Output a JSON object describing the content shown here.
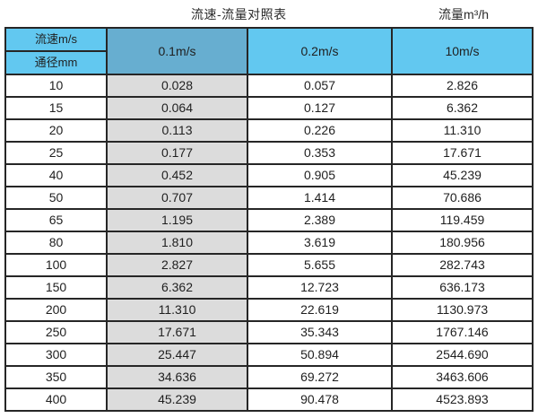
{
  "header": {
    "title": "流速-流量对照表",
    "unit_label": "流量m³/h"
  },
  "table": {
    "corner_top": "流速m/s",
    "corner_bottom": "通径mm",
    "velocity_columns": [
      "0.1m/s",
      "0.2m/s",
      "10m/s"
    ],
    "rows": [
      {
        "dn": "10",
        "values": [
          "0.028",
          "0.057",
          "2.826"
        ]
      },
      {
        "dn": "15",
        "values": [
          "0.064",
          "0.127",
          "6.362"
        ]
      },
      {
        "dn": "20",
        "values": [
          "0.113",
          "0.226",
          "11.310"
        ]
      },
      {
        "dn": "25",
        "values": [
          "0.177",
          "0.353",
          "17.671"
        ]
      },
      {
        "dn": "40",
        "values": [
          "0.452",
          "0.905",
          "45.239"
        ]
      },
      {
        "dn": "50",
        "values": [
          "0.707",
          "1.414",
          "70.686"
        ]
      },
      {
        "dn": "65",
        "values": [
          "1.195",
          "2.389",
          "119.459"
        ]
      },
      {
        "dn": "80",
        "values": [
          "1.810",
          "3.619",
          "180.956"
        ]
      },
      {
        "dn": "100",
        "values": [
          "2.827",
          "5.655",
          "282.743"
        ]
      },
      {
        "dn": "150",
        "values": [
          "6.362",
          "12.723",
          "636.173"
        ]
      },
      {
        "dn": "200",
        "values": [
          "11.310",
          "22.619",
          "1130.973"
        ]
      },
      {
        "dn": "250",
        "values": [
          "17.671",
          "35.343",
          "1767.146"
        ]
      },
      {
        "dn": "300",
        "values": [
          "25.447",
          "50.894",
          "2544.690"
        ]
      },
      {
        "dn": "350",
        "values": [
          "34.636",
          "69.272",
          "3463.606"
        ]
      },
      {
        "dn": "400",
        "values": [
          "45.239",
          "90.478",
          "4523.893"
        ]
      }
    ]
  },
  "colors": {
    "header_light_blue": "#62c8f0",
    "header_dark_blue": "#67aed0",
    "highlight_column_gray": "#dcdcdc",
    "border": "#262626"
  },
  "chart_data": {
    "type": "table",
    "title": "流速-流量对照表",
    "unit": "流量m³/h",
    "columns": [
      "通径mm",
      "0.1m/s",
      "0.2m/s",
      "10m/s"
    ],
    "rows": [
      [
        10,
        0.028,
        0.057,
        2.826
      ],
      [
        15,
        0.064,
        0.127,
        6.362
      ],
      [
        20,
        0.113,
        0.226,
        11.31
      ],
      [
        25,
        0.177,
        0.353,
        17.671
      ],
      [
        40,
        0.452,
        0.905,
        45.239
      ],
      [
        50,
        0.707,
        1.414,
        70.686
      ],
      [
        65,
        1.195,
        2.389,
        119.459
      ],
      [
        80,
        1.81,
        3.619,
        180.956
      ],
      [
        100,
        2.827,
        5.655,
        282.743
      ],
      [
        150,
        6.362,
        12.723,
        636.173
      ],
      [
        200,
        11.31,
        22.619,
        1130.973
      ],
      [
        250,
        17.671,
        35.343,
        1767.146
      ],
      [
        300,
        25.447,
        50.894,
        2544.69
      ],
      [
        350,
        34.636,
        69.272,
        3463.606
      ],
      [
        400,
        45.239,
        90.478,
        4523.893
      ]
    ]
  }
}
